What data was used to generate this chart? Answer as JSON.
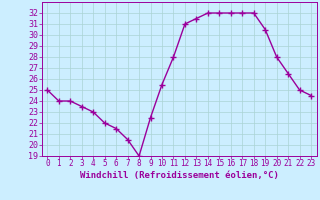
{
  "x": [
    0,
    1,
    2,
    3,
    4,
    5,
    6,
    7,
    8,
    9,
    10,
    11,
    12,
    13,
    14,
    15,
    16,
    17,
    18,
    19,
    20,
    21,
    22,
    23
  ],
  "y": [
    25.0,
    24.0,
    24.0,
    23.5,
    23.0,
    22.0,
    21.5,
    20.5,
    19.0,
    22.5,
    25.5,
    28.0,
    31.0,
    31.5,
    32.0,
    32.0,
    32.0,
    32.0,
    32.0,
    30.5,
    28.0,
    26.5,
    25.0,
    24.5
  ],
  "line_color": "#9b009b",
  "marker": "+",
  "marker_size": 4,
  "linewidth": 1.0,
  "xlabel": "Windchill (Refroidissement éolien,°C)",
  "ylabel": "",
  "xlim": [
    -0.5,
    23.5
  ],
  "ylim": [
    19,
    33
  ],
  "yticks": [
    19,
    20,
    21,
    22,
    23,
    24,
    25,
    26,
    27,
    28,
    29,
    30,
    31,
    32
  ],
  "xtick_labels": [
    "0",
    "1",
    "2",
    "3",
    "4",
    "5",
    "6",
    "7",
    "8",
    "9",
    "10",
    "11",
    "12",
    "13",
    "14",
    "15",
    "16",
    "17",
    "18",
    "19",
    "20",
    "21",
    "22",
    "23"
  ],
  "bg_color": "#cceeff",
  "grid_color": "#aad4d4",
  "axis_label_color": "#9b009b",
  "tick_color": "#9b009b",
  "xlabel_fontsize": 6.5,
  "ytick_fontsize": 6.0,
  "xtick_fontsize": 5.5
}
